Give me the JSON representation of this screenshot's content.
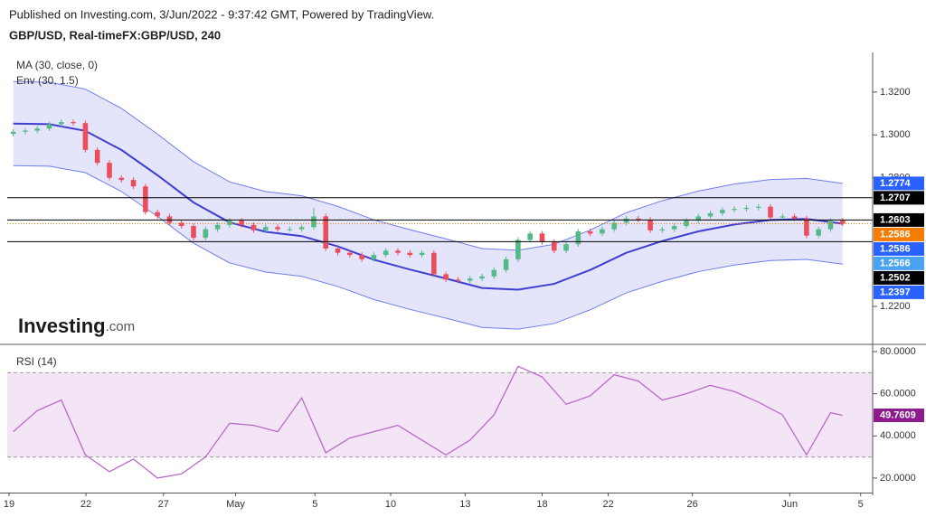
{
  "branding": {
    "name": "Investing",
    "suffix": ".com"
  },
  "chart_data": [
    {
      "type": "candlestick",
      "subtitle": "Published on Investing.com, 3/Jun/2022 - 9:37:42 GMT, Powered by TradingView.",
      "title": "GBP/USD, Real-timeFX:GBP/USD, 240",
      "up_color": "#53b987",
      "down_color": "#eb4d5c",
      "open": [
        1.3005,
        1.3015,
        1.302,
        1.303,
        1.305,
        1.306,
        1.3055,
        1.293,
        1.287,
        1.28,
        1.279,
        1.276,
        1.264,
        1.262,
        1.259,
        1.2575,
        1.252,
        1.256,
        1.258,
        1.26,
        1.258,
        1.2555,
        1.257,
        1.256,
        1.256,
        1.257,
        1.262,
        1.247,
        1.245,
        1.244,
        1.242,
        1.244,
        1.246,
        1.245,
        1.244,
        1.245,
        1.235,
        1.2325,
        1.232,
        1.233,
        1.234,
        1.237,
        1.242,
        1.251,
        1.254,
        1.25,
        1.246,
        1.249,
        1.255,
        1.254,
        1.256,
        1.259,
        1.261,
        1.2605,
        1.2555,
        1.256,
        1.2575,
        1.26,
        1.262,
        1.2635,
        1.265,
        1.2655,
        1.266,
        1.2665,
        1.2615,
        1.262,
        1.261,
        1.253,
        1.256,
        1.26
      ],
      "high": [
        1.3027,
        1.3032,
        1.3042,
        1.3062,
        1.3072,
        1.3072,
        1.3067,
        1.2942,
        1.2882,
        1.2812,
        1.2802,
        1.2772,
        1.2652,
        1.2632,
        1.2602,
        1.2587,
        1.2572,
        1.2592,
        1.2612,
        1.2612,
        1.2592,
        1.2582,
        1.2582,
        1.2572,
        1.2582,
        1.266,
        1.2632,
        1.2482,
        1.2462,
        1.2452,
        1.2452,
        1.2472,
        1.2472,
        1.2462,
        1.2462,
        1.2462,
        1.2362,
        1.2337,
        1.2342,
        1.2352,
        1.2382,
        1.2432,
        1.2522,
        1.2552,
        1.2552,
        1.2512,
        1.2502,
        1.2562,
        1.2562,
        1.2572,
        1.2602,
        1.2622,
        1.2622,
        1.2617,
        1.2572,
        1.2587,
        1.2612,
        1.2632,
        1.2647,
        1.2662,
        1.2667,
        1.2672,
        1.2677,
        1.2677,
        1.2632,
        1.2632,
        1.2622,
        1.2572,
        1.2612,
        1.2612
      ],
      "low": [
        1.2993,
        1.3003,
        1.3008,
        1.3018,
        1.3038,
        1.3043,
        1.2918,
        1.2858,
        1.2788,
        1.2778,
        1.2748,
        1.2628,
        1.2608,
        1.2578,
        1.2563,
        1.2508,
        1.2508,
        1.2548,
        1.2568,
        1.2568,
        1.2543,
        1.2543,
        1.2548,
        1.2548,
        1.2548,
        1.2558,
        1.2458,
        1.2438,
        1.2428,
        1.2408,
        1.2408,
        1.2428,
        1.2438,
        1.2428,
        1.2428,
        1.2338,
        1.2313,
        1.2308,
        1.2308,
        1.2318,
        1.2328,
        1.2358,
        1.2408,
        1.2498,
        1.2488,
        1.2448,
        1.2448,
        1.2478,
        1.2528,
        1.2528,
        1.2548,
        1.2578,
        1.2593,
        1.2543,
        1.2543,
        1.2548,
        1.2563,
        1.2588,
        1.2608,
        1.2623,
        1.2638,
        1.2643,
        1.2648,
        1.2603,
        1.2603,
        1.2598,
        1.2518,
        1.2518,
        1.2548,
        1.2574
      ],
      "close": [
        1.3015,
        1.302,
        1.303,
        1.305,
        1.306,
        1.3055,
        1.293,
        1.287,
        1.28,
        1.279,
        1.276,
        1.264,
        1.262,
        1.259,
        1.2575,
        1.252,
        1.256,
        1.258,
        1.26,
        1.258,
        1.2555,
        1.257,
        1.256,
        1.256,
        1.257,
        1.262,
        1.247,
        1.245,
        1.244,
        1.242,
        1.244,
        1.246,
        1.245,
        1.244,
        1.245,
        1.235,
        1.2325,
        1.232,
        1.233,
        1.234,
        1.237,
        1.242,
        1.251,
        1.254,
        1.25,
        1.246,
        1.249,
        1.255,
        1.254,
        1.256,
        1.259,
        1.261,
        1.2605,
        1.2555,
        1.256,
        1.2575,
        1.26,
        1.262,
        1.2635,
        1.265,
        1.2655,
        1.266,
        1.2665,
        1.2615,
        1.262,
        1.261,
        1.253,
        1.256,
        1.26,
        1.2586
      ],
      "overlays": [
        {
          "name": "MA (30, close, 0)",
          "color": "#3f3fd0",
          "x": [
            0,
            3,
            6,
            9,
            12,
            15,
            18,
            21,
            24,
            27,
            30,
            33,
            36,
            39,
            42,
            45,
            48,
            51,
            54,
            57,
            60,
            63,
            66,
            69
          ],
          "values": [
            1.3053,
            1.305,
            1.3019,
            1.293,
            1.2812,
            1.2685,
            1.2592,
            1.2548,
            1.2528,
            1.248,
            1.2418,
            1.2372,
            1.233,
            1.2286,
            1.2278,
            1.2305,
            1.237,
            1.245,
            1.2505,
            1.255,
            1.2582,
            1.2603,
            1.2608,
            1.2586
          ]
        },
        {
          "name": "Env (30, 1.5)",
          "color": "#6f7fe8",
          "fill": "#e4e5fb",
          "x": [
            0,
            3,
            6,
            9,
            12,
            15,
            18,
            21,
            24,
            27,
            30,
            33,
            36,
            39,
            42,
            45,
            48,
            51,
            54,
            57,
            60,
            63,
            66,
            69
          ],
          "upper": [
            1.3249,
            1.3246,
            1.3214,
            1.3124,
            1.3004,
            1.2875,
            1.2781,
            1.2736,
            1.2716,
            1.2667,
            1.2604,
            1.2558,
            1.2515,
            1.247,
            1.2462,
            1.249,
            1.2556,
            1.2637,
            1.2693,
            1.2738,
            1.2771,
            1.2792,
            1.2797,
            1.2774
          ],
          "lower": [
            1.2857,
            1.2854,
            1.2824,
            1.2736,
            1.262,
            1.2495,
            1.2403,
            1.236,
            1.234,
            1.2293,
            1.2232,
            1.2186,
            1.2145,
            1.2102,
            1.2094,
            1.212,
            1.2184,
            1.2263,
            1.2317,
            1.2362,
            1.2393,
            1.2414,
            1.2419,
            1.2397
          ]
        }
      ],
      "xlim": [
        -0.5,
        71.5
      ],
      "xticks": [
        {
          "value": -0.35,
          "label": "19"
        },
        {
          "value": 6.05,
          "label": "22"
        },
        {
          "value": 12.5,
          "label": "27"
        },
        {
          "value": 18.5,
          "label": "May"
        },
        {
          "value": 25.1,
          "label": "5"
        },
        {
          "value": 31.4,
          "label": "10"
        },
        {
          "value": 37.6,
          "label": "13"
        },
        {
          "value": 44.0,
          "label": "18"
        },
        {
          "value": 49.5,
          "label": "22"
        },
        {
          "value": 56.5,
          "label": "26"
        },
        {
          "value": 64.6,
          "label": "Jun"
        },
        {
          "value": 70.5,
          "label": "5"
        }
      ],
      "ylim": [
        1.2027,
        1.3385
      ],
      "yticks": [
        {
          "value": 1.22,
          "label": "1.2200"
        },
        {
          "value": 1.28,
          "label": "1.2800"
        },
        {
          "value": 1.3,
          "label": "1.3000"
        },
        {
          "value": 1.32,
          "label": "1.3200"
        }
      ],
      "markers": [
        {
          "value": 1.2774,
          "color": "#2962ff"
        },
        {
          "value": 1.2707,
          "color": "#000000",
          "line": "solid"
        },
        {
          "value": 1.2603,
          "color": "#000000",
          "line": "solid"
        },
        {
          "value": 1.2586,
          "color": "#f57c00",
          "line": "dotted"
        },
        {
          "value": 1.2586,
          "color": "#2962ff"
        },
        {
          "value": 1.2566,
          "color": "#4aa3f0"
        },
        {
          "value": 1.2502,
          "color": "#000000",
          "line": "solid"
        },
        {
          "value": 1.2397,
          "color": "#2962ff"
        }
      ]
    },
    {
      "type": "line",
      "title": "RSI (14)",
      "color": "#b86bc6",
      "band_fill": "#f3e5f5",
      "bands": [
        70,
        30
      ],
      "x": [
        0,
        2,
        4,
        6,
        8,
        10,
        12,
        14,
        16,
        18,
        20,
        22,
        24,
        26,
        28,
        30,
        32,
        34,
        36,
        38,
        40,
        42,
        44,
        46,
        48,
        50,
        52,
        54,
        56,
        58,
        60,
        62,
        64,
        66,
        68,
        69
      ],
      "values": [
        42,
        52,
        57,
        31,
        23,
        29,
        20,
        22,
        30,
        46,
        45,
        42,
        58,
        32,
        39,
        42,
        45,
        38,
        31,
        38,
        50,
        73,
        68,
        55,
        59,
        69,
        66,
        57,
        60,
        64,
        61,
        56,
        50,
        31,
        51,
        49.7609
      ],
      "xlim": [
        -0.5,
        71.5
      ],
      "ylim": [
        13.1,
        83
      ],
      "yticks": [
        {
          "value": 20,
          "label": "20.0000"
        },
        {
          "value": 40,
          "label": "40.0000"
        },
        {
          "value": 60,
          "label": "60.0000"
        },
        {
          "value": 80,
          "label": "80.0000"
        }
      ],
      "markers": [
        {
          "value": 49.7609,
          "color": "#8e1b8e"
        }
      ]
    }
  ]
}
